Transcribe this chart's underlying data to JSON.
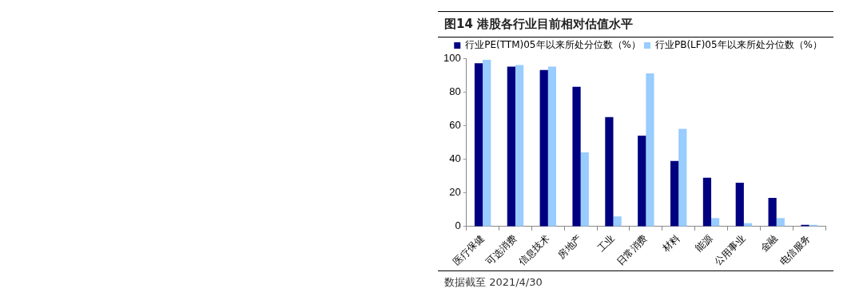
{
  "chart_data": {
    "type": "bar",
    "title": "图14 港股各行业目前相对估值水平",
    "categories": [
      "医疗保健",
      "可选消费",
      "信息技术",
      "房地产",
      "工业",
      "日常消费",
      "材料",
      "能源",
      "公用事业",
      "金融",
      "电信服务"
    ],
    "series": [
      {
        "name": "行业PE(TTM)05年以来所处分位数（%）",
        "color": "#000080",
        "values": [
          97,
          95,
          93,
          83,
          65,
          54,
          39,
          29,
          26,
          17,
          1
        ]
      },
      {
        "name": "行业PB(LF)05年以来所处分位数（%）",
        "color": "#99ccff",
        "values": [
          99,
          96,
          95,
          44,
          6,
          91,
          58,
          5,
          2,
          5,
          1
        ]
      }
    ],
    "ylim": [
      0,
      100
    ],
    "yticks": [
      0,
      20,
      40,
      60,
      80,
      100
    ],
    "grid": false,
    "legend": "top right",
    "annotations": [
      "数据截至 2021/4/30"
    ]
  }
}
